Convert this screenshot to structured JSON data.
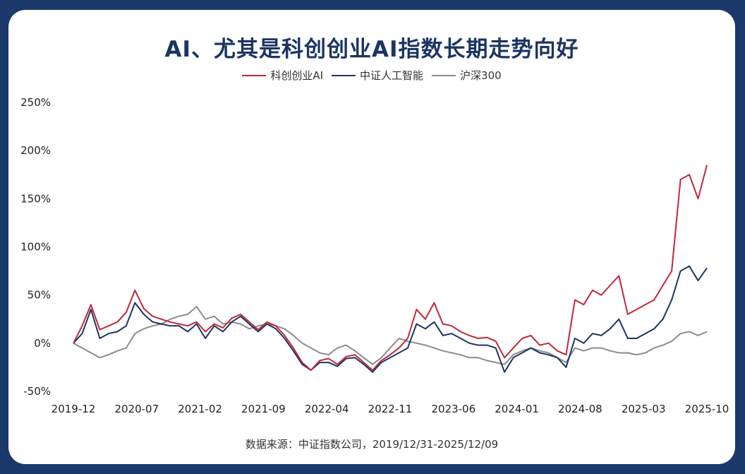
{
  "title": "AI、尤其是科创创业AI指数长期走势向好",
  "source": "数据来源：中证指数公司，2019/12/31-2025/12/09",
  "chart_data": {
    "type": "line",
    "title": "AI、尤其是科创创业AI指数长期走势向好",
    "xlabel": "",
    "ylabel": "",
    "ylim": [
      -50,
      250
    ],
    "y_ticks": [
      "-50%",
      "0%",
      "50%",
      "100%",
      "150%",
      "200%",
      "250%"
    ],
    "y_tick_values": [
      -50,
      0,
      50,
      100,
      150,
      200,
      250
    ],
    "x_ticks": [
      "2019-12",
      "2020-07",
      "2021-02",
      "2021-09",
      "2022-04",
      "2022-11",
      "2023-06",
      "2024-01",
      "2024-08",
      "2025-03",
      "2025-10"
    ],
    "legend_position": "top-center",
    "grid": false,
    "x": [
      "2019-12",
      "2020-01",
      "2020-02",
      "2020-03",
      "2020-04",
      "2020-05",
      "2020-06",
      "2020-07",
      "2020-08",
      "2020-09",
      "2020-10",
      "2020-11",
      "2020-12",
      "2021-01",
      "2021-02",
      "2021-03",
      "2021-04",
      "2021-05",
      "2021-06",
      "2021-07",
      "2021-08",
      "2021-09",
      "2021-10",
      "2021-11",
      "2021-12",
      "2022-01",
      "2022-02",
      "2022-03",
      "2022-04",
      "2022-05",
      "2022-06",
      "2022-07",
      "2022-08",
      "2022-09",
      "2022-10",
      "2022-11",
      "2022-12",
      "2023-01",
      "2023-02",
      "2023-03",
      "2023-04",
      "2023-05",
      "2023-06",
      "2023-07",
      "2023-08",
      "2023-09",
      "2023-10",
      "2023-11",
      "2023-12",
      "2024-01",
      "2024-02",
      "2024-03",
      "2024-04",
      "2024-05",
      "2024-06",
      "2024-07",
      "2024-08",
      "2024-09",
      "2024-10",
      "2024-11",
      "2024-12",
      "2025-01",
      "2025-02",
      "2025-03",
      "2025-04",
      "2025-05",
      "2025-06",
      "2025-07",
      "2025-08",
      "2025-09",
      "2025-10",
      "2025-11",
      "2025-12"
    ],
    "series": [
      {
        "name": "科创创业AI",
        "color": "#c0283a",
        "values": [
          0,
          18,
          40,
          14,
          18,
          22,
          32,
          55,
          36,
          28,
          25,
          22,
          20,
          18,
          22,
          12,
          20,
          16,
          26,
          30,
          22,
          14,
          22,
          18,
          8,
          -5,
          -20,
          -28,
          -18,
          -16,
          -22,
          -14,
          -12,
          -20,
          -28,
          -18,
          -12,
          -5,
          5,
          35,
          25,
          42,
          20,
          18,
          12,
          8,
          5,
          6,
          2,
          -15,
          -5,
          5,
          8,
          -2,
          0,
          -8,
          -12,
          45,
          40,
          55,
          50,
          60,
          70,
          30,
          35,
          40,
          45,
          60,
          75,
          170,
          175,
          150,
          185
        ]
      },
      {
        "name": "中证人工智能",
        "color": "#1c3561",
        "values": [
          0,
          10,
          35,
          5,
          10,
          12,
          18,
          42,
          30,
          22,
          20,
          18,
          18,
          12,
          20,
          5,
          18,
          12,
          22,
          28,
          20,
          12,
          20,
          15,
          5,
          -8,
          -22,
          -28,
          -20,
          -20,
          -24,
          -16,
          -15,
          -22,
          -30,
          -20,
          -15,
          -10,
          -5,
          20,
          15,
          22,
          8,
          10,
          5,
          0,
          -2,
          -2,
          -5,
          -30,
          -15,
          -10,
          -5,
          -10,
          -12,
          -15,
          -25,
          5,
          0,
          10,
          8,
          15,
          25,
          5,
          5,
          10,
          15,
          25,
          45,
          75,
          80,
          65,
          78
        ]
      },
      {
        "name": "沪深300",
        "color": "#8c8c8c",
        "values": [
          0,
          -5,
          -10,
          -15,
          -12,
          -8,
          -5,
          10,
          15,
          18,
          20,
          25,
          28,
          30,
          38,
          25,
          28,
          20,
          22,
          20,
          15,
          18,
          20,
          18,
          15,
          8,
          0,
          -5,
          -10,
          -12,
          -5,
          -2,
          -8,
          -15,
          -22,
          -15,
          -5,
          5,
          2,
          0,
          -2,
          -5,
          -8,
          -10,
          -12,
          -15,
          -15,
          -18,
          -20,
          -22,
          -12,
          -8,
          -5,
          -8,
          -10,
          -15,
          -20,
          -5,
          -8,
          -5,
          -5,
          -8,
          -10,
          -10,
          -12,
          -10,
          -5,
          -2,
          2,
          10,
          12,
          8,
          12
        ]
      }
    ]
  }
}
